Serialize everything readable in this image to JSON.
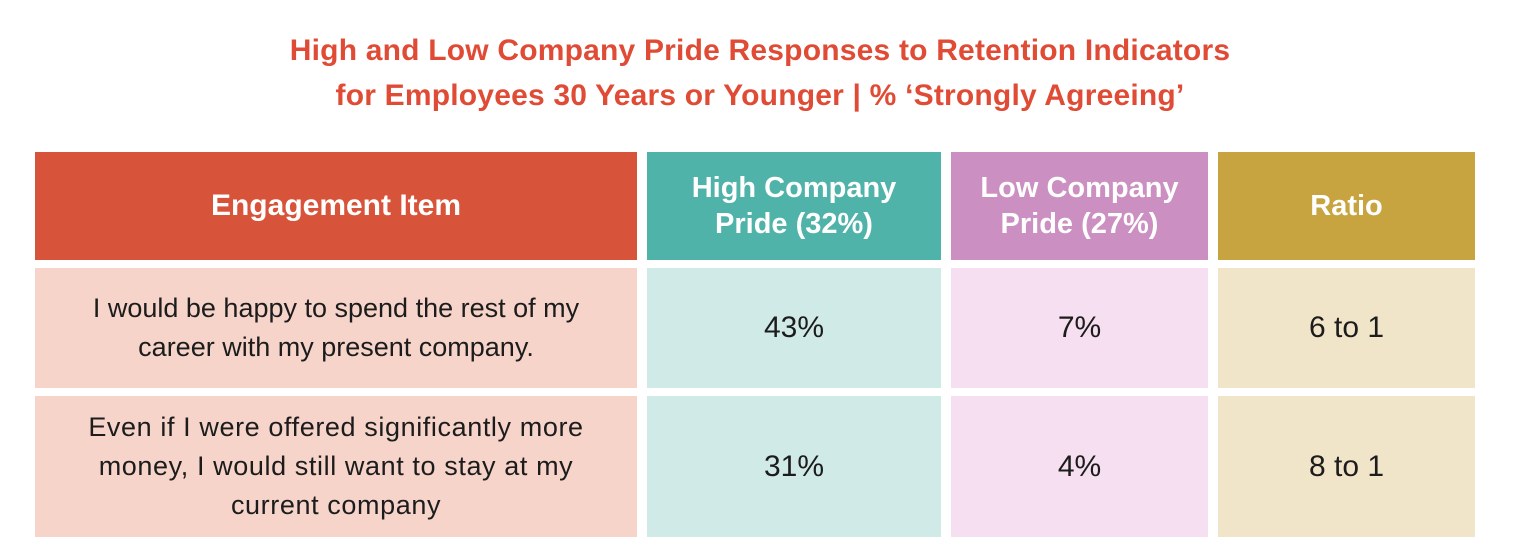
{
  "title": {
    "line1": "High and Low Company Pride Responses to Retention Indicators",
    "line2": "for Employees 30 Years or Younger | % ‘Strongly Agreeing’"
  },
  "colors": {
    "title": "#E04B35",
    "header_engagement": "#D75339",
    "header_high_pride": "#4FB3A9",
    "header_low_pride": "#CB8FC1",
    "header_ratio": "#C8A441",
    "cell_engagement": "#F6D4CA",
    "cell_high_pride": "#D0EAE7",
    "cell_low_pride": "#F5DFF0",
    "cell_ratio": "#F1E5C9"
  },
  "chart_data": {
    "type": "table",
    "title": "High and Low Company Pride Responses to Retention Indicators for Employees 30 Years or Younger | % ‘Strongly Agreeing’",
    "columns": [
      "Engagement Item",
      "High Company Pride (32%)",
      "Low Company Pride (27%)",
      "Ratio"
    ],
    "rows": [
      [
        "I would be happy to spend the rest of my career with my present company.",
        "43%",
        "7%",
        "6 to 1"
      ],
      [
        "Even if I were offered significantly more money, I would still want to stay at my current company",
        "31%",
        "4%",
        "8 to 1"
      ]
    ]
  }
}
